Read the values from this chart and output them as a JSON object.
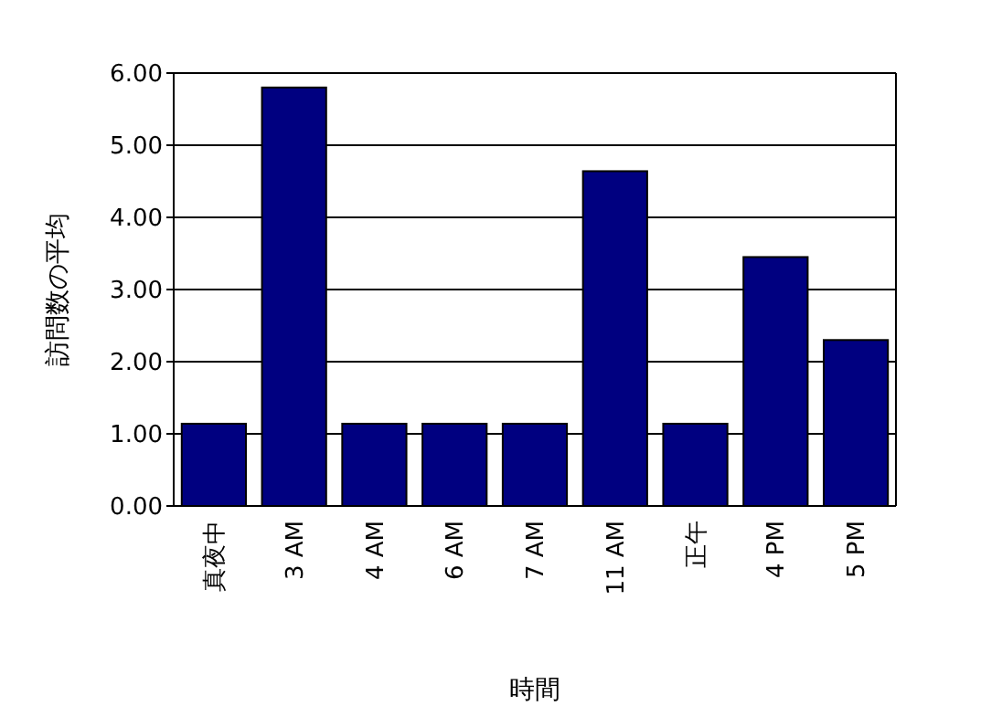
{
  "chart_data": {
    "type": "bar",
    "xlabel": "時間",
    "ylabel": "訪問数の平均",
    "categories": [
      "真夜中",
      "3 AM",
      "4 AM",
      "6 AM",
      "7 AM",
      "11 AM",
      "正午",
      "4 PM",
      "5 PM"
    ],
    "values": [
      1.14,
      5.8,
      1.14,
      1.14,
      1.14,
      4.64,
      1.14,
      3.45,
      2.3
    ],
    "color": "#000080",
    "ylim": [
      0,
      6
    ],
    "yticks": [
      {
        "value": 0,
        "label": "0.00"
      },
      {
        "value": 1,
        "label": "1.00"
      },
      {
        "value": 2,
        "label": "2.00"
      },
      {
        "value": 3,
        "label": "3.00"
      },
      {
        "value": 4,
        "label": "4.00"
      },
      {
        "value": 5,
        "label": "5.00"
      },
      {
        "value": 6,
        "label": "6.00"
      }
    ],
    "grid": "y"
  }
}
